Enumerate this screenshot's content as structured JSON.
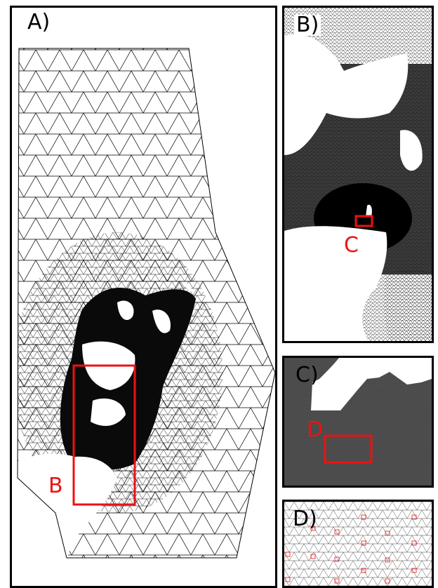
{
  "panels": {
    "a": {
      "label": "A)"
    },
    "b": {
      "label": "B)"
    },
    "c": {
      "label": "C)"
    },
    "d": {
      "label": "D)"
    }
  },
  "markers": {
    "b": "B",
    "c": "C",
    "d": "D"
  },
  "colors": {
    "mesh_line": "#000000",
    "land": "#ffffff",
    "dense_mesh": "#0a0a0a",
    "medium_mesh": "#555555",
    "highlight": "#ee1111"
  }
}
